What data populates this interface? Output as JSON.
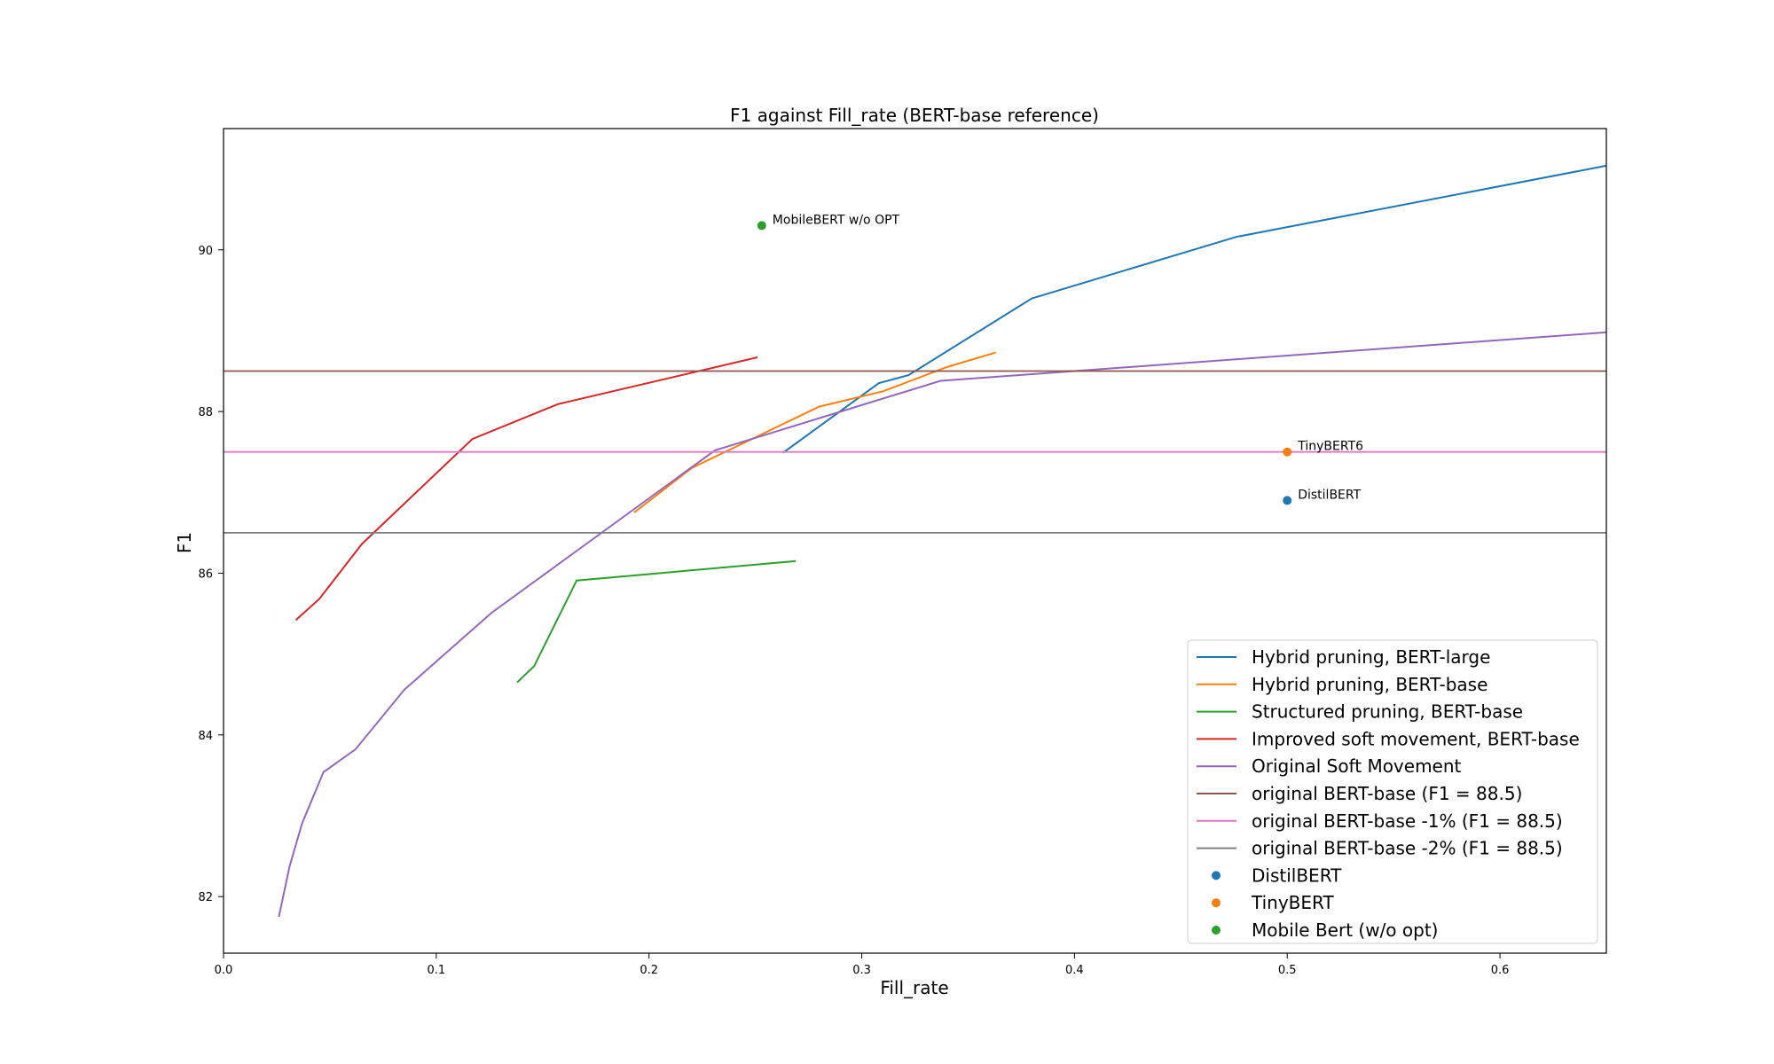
{
  "chart_data": {
    "type": "line",
    "title": "F1 against Fill_rate (BERT-base reference)",
    "xlabel": "Fill_rate",
    "ylabel": "F1",
    "xlim": [
      0.0,
      0.65
    ],
    "ylim": [
      81.3,
      91.5
    ],
    "xticks": [
      0.0,
      0.1,
      0.2,
      0.3,
      0.4,
      0.5,
      0.6
    ],
    "xtick_labels": [
      "0.0",
      "0.1",
      "0.2",
      "0.3",
      "0.4",
      "0.5",
      "0.6"
    ],
    "yticks": [
      82,
      84,
      86,
      88,
      90
    ],
    "ytick_labels": [
      "82",
      "84",
      "86",
      "88",
      "90"
    ],
    "grid": false,
    "legend_position": "lower-right",
    "series": [
      {
        "name": "Hybrid pruning, BERT-large",
        "kind": "line",
        "color": "#1f77b4",
        "x": [
          0.263,
          0.308,
          0.322,
          0.38,
          0.476,
          0.65
        ],
        "y": [
          87.49,
          88.35,
          88.45,
          89.4,
          90.16,
          91.04
        ]
      },
      {
        "name": "Hybrid pruning, BERT-base",
        "kind": "line",
        "color": "#ff7f0e",
        "x": [
          0.193,
          0.22,
          0.28,
          0.31,
          0.34,
          0.363
        ],
        "y": [
          86.75,
          87.3,
          88.06,
          88.25,
          88.55,
          88.73
        ]
      },
      {
        "name": "Structured pruning, BERT-base",
        "kind": "line",
        "color": "#2ca02c",
        "x": [
          0.138,
          0.146,
          0.166,
          0.269
        ],
        "y": [
          84.65,
          84.85,
          85.91,
          86.15
        ]
      },
      {
        "name": "Improved soft movement, BERT-base",
        "kind": "line",
        "color": "#d62728",
        "x": [
          0.034,
          0.045,
          0.065,
          0.117,
          0.157,
          0.251
        ],
        "y": [
          85.42,
          85.68,
          86.36,
          87.66,
          88.09,
          88.67
        ]
      },
      {
        "name": "Original Soft Movement",
        "kind": "line",
        "color": "#9467bd",
        "x": [
          0.026,
          0.031,
          0.037,
          0.047,
          0.062,
          0.085,
          0.126,
          0.231,
          0.337,
          0.65
        ],
        "y": [
          81.75,
          82.37,
          82.91,
          83.54,
          83.82,
          84.56,
          85.51,
          87.52,
          88.38,
          88.98
        ]
      },
      {
        "name": "original BERT-base (F1 = 88.5)",
        "kind": "hline",
        "color": "#8c564b",
        "y": 88.5
      },
      {
        "name": "original BERT-base -1% (F1 = 88.5)",
        "kind": "hline",
        "color": "#e377c2",
        "y": 87.5
      },
      {
        "name": "original BERT-base -2% (F1 = 88.5)",
        "kind": "hline",
        "color": "#7f7f7f",
        "y": 86.5
      },
      {
        "name": "DistilBERT",
        "kind": "point",
        "color": "#1f77b4",
        "x": 0.5,
        "y": 86.9,
        "annotation": "DistilBERT"
      },
      {
        "name": "TinyBERT",
        "kind": "point",
        "color": "#ff7f0e",
        "x": 0.5,
        "y": 87.5,
        "annotation": "TinyBERT6"
      },
      {
        "name": "Mobile Bert (w/o opt)",
        "kind": "point",
        "color": "#2ca02c",
        "x": 0.253,
        "y": 90.3,
        "annotation": "MobileBERT w/o OPT"
      }
    ]
  }
}
